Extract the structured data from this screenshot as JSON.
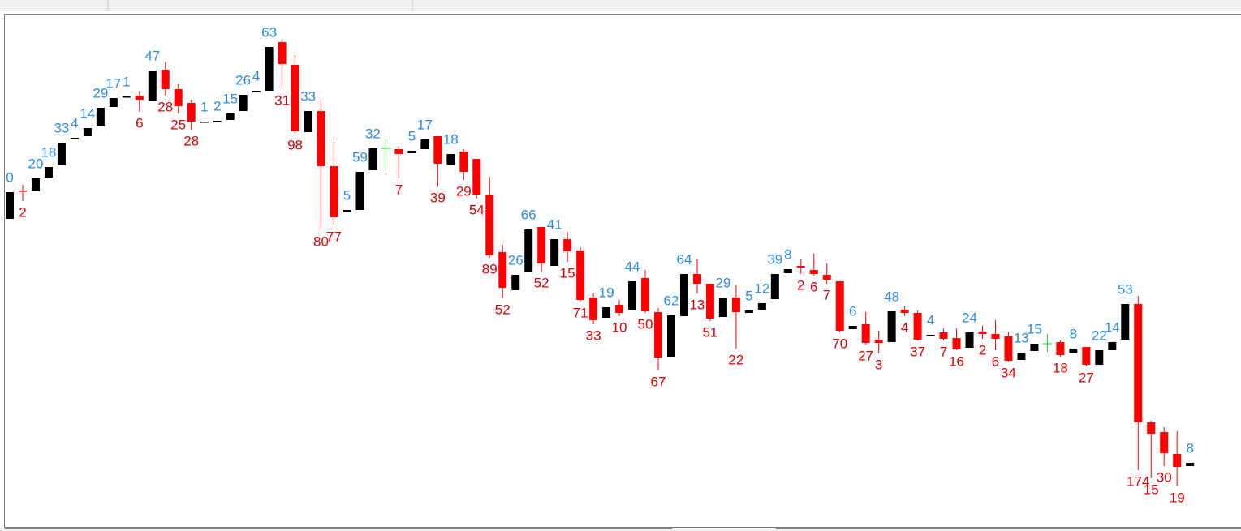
{
  "chart_data": {
    "type": "candlestick",
    "ylim": [
      0,
      620
    ],
    "up_color": "#000000",
    "down_color": "#ff0000",
    "doji_color": "#22cc22",
    "up_label_color": "#2a8be6",
    "down_label_color": "#e00000",
    "open": [
      370,
      405,
      404,
      421,
      436,
      468,
      472,
      484,
      508,
      520,
      522,
      516,
      554,
      530,
      513,
      489,
      489,
      492,
      503,
      526,
      528,
      588,
      560,
      477,
      503,
      435,
      378,
      381,
      430,
      457,
      456,
      451,
      456,
      472,
      437,
      453,
      444,
      400,
      329,
      282,
      304,
      360,
      312,
      345,
      331,
      273,
      248,
      264,
      258,
      297,
      255,
      200,
      250,
      302,
      290,
      249,
      273,
      254,
      258,
      271,
      303,
      312,
      307,
      301,
      293,
      234,
      240,
      221,
      218,
      258,
      254,
      225,
      230,
      223,
      211,
      231,
      228,
      225,
      196,
      207,
      216,
      218,
      204,
      212,
      190,
      208,
      221,
      265,
      119,
      107,
      80,
      65
    ],
    "high": [
      403,
      412,
      420,
      434,
      464,
      470,
      482,
      507,
      519,
      521,
      528,
      553,
      563,
      537,
      517,
      490,
      491,
      500,
      523,
      528,
      582,
      592,
      572,
      503,
      518,
      465,
      381,
      428,
      457,
      468,
      460,
      454,
      468,
      472,
      450,
      456,
      444,
      422,
      338,
      301,
      357,
      360,
      345,
      354,
      335,
      278,
      261,
      270,
      293,
      307,
      260,
      251,
      302,
      320,
      290,
      273,
      288,
      257,
      266,
      302,
      308,
      320,
      327,
      315,
      293,
      238,
      255,
      232,
      256,
      262,
      257,
      227,
      235,
      235,
      230,
      238,
      245,
      230,
      205,
      216,
      228,
      220,
      210,
      212,
      208,
      218,
      265,
      275,
      121,
      113,
      108,
      69
    ],
    "low": [
      370,
      392,
      404,
      421,
      436,
      468,
      472,
      484,
      508,
      520,
      502,
      516,
      522,
      500,
      480,
      489,
      489,
      492,
      503,
      526,
      528,
      530,
      475,
      477,
      356,
      362,
      378,
      381,
      430,
      430,
      420,
      451,
      456,
      410,
      437,
      418,
      395,
      322,
      272,
      282,
      304,
      305,
      312,
      317,
      268,
      240,
      248,
      250,
      258,
      254,
      183,
      200,
      250,
      278,
      244,
      249,
      210,
      254,
      258,
      271,
      303,
      302,
      300,
      290,
      230,
      234,
      215,
      204,
      218,
      250,
      220,
      225,
      220,
      208,
      211,
      222,
      208,
      194,
      196,
      207,
      206,
      200,
      204,
      188,
      190,
      208,
      221,
      60,
      50,
      65,
      40,
      65
    ],
    "close": [
      403,
      404,
      420,
      434,
      464,
      470,
      482,
      507,
      519,
      521,
      517,
      553,
      530,
      509,
      490,
      490,
      491,
      500,
      523,
      528,
      582,
      561,
      478,
      503,
      435,
      372,
      381,
      428,
      457,
      457,
      450,
      454,
      468,
      438,
      450,
      428,
      400,
      325,
      285,
      301,
      357,
      315,
      345,
      330,
      270,
      245,
      261,
      254,
      293,
      256,
      199,
      251,
      302,
      290,
      247,
      273,
      255,
      257,
      266,
      302,
      308,
      310,
      302,
      295,
      232,
      238,
      217,
      217,
      256,
      254,
      221,
      227,
      222,
      209,
      230,
      228,
      222,
      195,
      205,
      216,
      216,
      202,
      210,
      190,
      208,
      218,
      265,
      119,
      105,
      81,
      64,
      69
    ],
    "labels": [
      0,
      2,
      20,
      18,
      33,
      4,
      14,
      29,
      17,
      1,
      6,
      47,
      28,
      25,
      28,
      1,
      2,
      15,
      26,
      4,
      63,
      31,
      98,
      33,
      80,
      77,
      5,
      59,
      32,
      null,
      7,
      5,
      17,
      39,
      18,
      29,
      54,
      89,
      52,
      26,
      66,
      52,
      41,
      15,
      71,
      33,
      19,
      10,
      44,
      50,
      67,
      62,
      64,
      13,
      51,
      29,
      22,
      5,
      12,
      39,
      8,
      2,
      6,
      7,
      70,
      6,
      27,
      3,
      48,
      4,
      37,
      4,
      7,
      16,
      24,
      2,
      6,
      34,
      13,
      15,
      null,
      18,
      8,
      27,
      22,
      14,
      53,
      174,
      15,
      30,
      19,
      8
    ]
  }
}
